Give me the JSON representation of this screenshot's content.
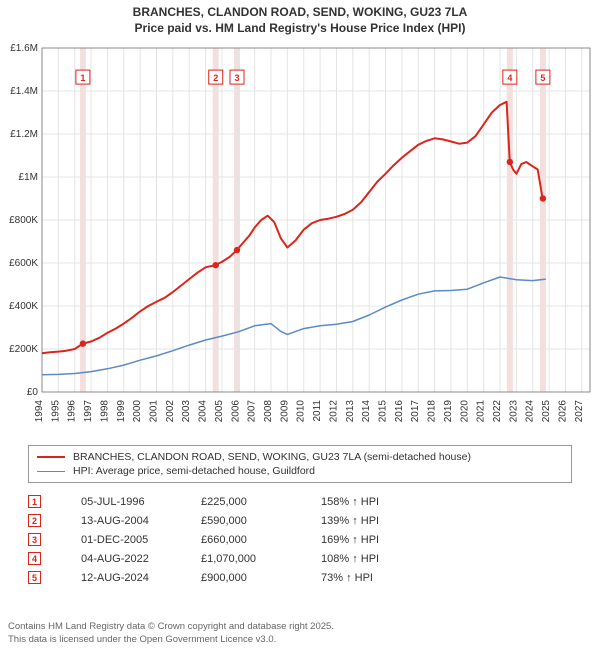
{
  "title_line1": "BRANCHES, CLANDON ROAD, SEND, WOKING, GU23 7LA",
  "title_line2": "Price paid vs. HM Land Registry's House Price Index (HPI)",
  "chart": {
    "type": "line",
    "background_color": "#ffffff",
    "plot_background": "#ffffff",
    "grid_color": "#e4e4e4",
    "axis_color": "#888888",
    "tick_fontsize": 10,
    "x_years": [
      1994,
      1995,
      1996,
      1997,
      1998,
      1999,
      2000,
      2001,
      2002,
      2003,
      2004,
      2005,
      2006,
      2007,
      2008,
      2009,
      2010,
      2011,
      2012,
      2013,
      2014,
      2015,
      2016,
      2017,
      2018,
      2019,
      2020,
      2021,
      2022,
      2023,
      2024,
      2025,
      2026,
      2027
    ],
    "xlim": [
      1994,
      2027.5
    ],
    "ylim": [
      0,
      1600000
    ],
    "ytick_step": 200000,
    "ytick_labels": [
      "£0",
      "£200K",
      "£400K",
      "£600K",
      "£800K",
      "£1M",
      "£1.2M",
      "£1.4M",
      "£1.6M"
    ],
    "series": [
      {
        "name": "property",
        "color": "#d9261c",
        "width": 2,
        "points": [
          [
            1994.0,
            180000
          ],
          [
            1994.5,
            185000
          ],
          [
            1995.0,
            188000
          ],
          [
            1995.5,
            192000
          ],
          [
            1996.0,
            200000
          ],
          [
            1996.5,
            225000
          ],
          [
            1997.0,
            235000
          ],
          [
            1997.5,
            252000
          ],
          [
            1998.0,
            275000
          ],
          [
            1998.5,
            295000
          ],
          [
            1999.0,
            318000
          ],
          [
            1999.5,
            345000
          ],
          [
            2000.0,
            375000
          ],
          [
            2000.5,
            400000
          ],
          [
            2001.0,
            420000
          ],
          [
            2001.5,
            438000
          ],
          [
            2002.0,
            465000
          ],
          [
            2002.5,
            495000
          ],
          [
            2003.0,
            525000
          ],
          [
            2003.5,
            555000
          ],
          [
            2004.0,
            580000
          ],
          [
            2004.6,
            590000
          ],
          [
            2005.0,
            605000
          ],
          [
            2005.5,
            630000
          ],
          [
            2005.9,
            660000
          ],
          [
            2006.3,
            695000
          ],
          [
            2006.7,
            730000
          ],
          [
            2007.0,
            765000
          ],
          [
            2007.4,
            800000
          ],
          [
            2007.8,
            820000
          ],
          [
            2008.2,
            790000
          ],
          [
            2008.6,
            715000
          ],
          [
            2009.0,
            672000
          ],
          [
            2009.5,
            705000
          ],
          [
            2010.0,
            755000
          ],
          [
            2010.5,
            785000
          ],
          [
            2011.0,
            800000
          ],
          [
            2011.5,
            806000
          ],
          [
            2012.0,
            815000
          ],
          [
            2012.5,
            828000
          ],
          [
            2013.0,
            848000
          ],
          [
            2013.5,
            882000
          ],
          [
            2014.0,
            930000
          ],
          [
            2014.5,
            978000
          ],
          [
            2015.0,
            1015000
          ],
          [
            2015.5,
            1055000
          ],
          [
            2016.0,
            1090000
          ],
          [
            2016.5,
            1120000
          ],
          [
            2017.0,
            1150000
          ],
          [
            2017.5,
            1168000
          ],
          [
            2018.0,
            1180000
          ],
          [
            2018.5,
            1175000
          ],
          [
            2019.0,
            1165000
          ],
          [
            2019.5,
            1155000
          ],
          [
            2020.0,
            1160000
          ],
          [
            2020.5,
            1190000
          ],
          [
            2021.0,
            1245000
          ],
          [
            2021.5,
            1300000
          ],
          [
            2022.0,
            1335000
          ],
          [
            2022.4,
            1350000
          ],
          [
            2022.6,
            1070000
          ],
          [
            2022.8,
            1035000
          ],
          [
            2023.0,
            1015000
          ],
          [
            2023.3,
            1060000
          ],
          [
            2023.6,
            1070000
          ],
          [
            2024.0,
            1050000
          ],
          [
            2024.3,
            1035000
          ],
          [
            2024.6,
            900000
          ]
        ]
      },
      {
        "name": "hpi",
        "color": "#5a8bc4",
        "width": 1.5,
        "points": [
          [
            1994.0,
            80000
          ],
          [
            1995.0,
            82000
          ],
          [
            1996.0,
            86000
          ],
          [
            1997.0,
            95000
          ],
          [
            1998.0,
            108000
          ],
          [
            1999.0,
            125000
          ],
          [
            2000.0,
            148000
          ],
          [
            2001.0,
            168000
          ],
          [
            2002.0,
            192000
          ],
          [
            2003.0,
            218000
          ],
          [
            2004.0,
            242000
          ],
          [
            2005.0,
            260000
          ],
          [
            2006.0,
            280000
          ],
          [
            2007.0,
            308000
          ],
          [
            2008.0,
            318000
          ],
          [
            2008.6,
            282000
          ],
          [
            2009.0,
            268000
          ],
          [
            2010.0,
            295000
          ],
          [
            2011.0,
            308000
          ],
          [
            2012.0,
            315000
          ],
          [
            2013.0,
            328000
          ],
          [
            2014.0,
            358000
          ],
          [
            2015.0,
            395000
          ],
          [
            2016.0,
            428000
          ],
          [
            2017.0,
            455000
          ],
          [
            2018.0,
            470000
          ],
          [
            2019.0,
            472000
          ],
          [
            2020.0,
            478000
          ],
          [
            2021.0,
            508000
          ],
          [
            2022.0,
            535000
          ],
          [
            2023.0,
            522000
          ],
          [
            2024.0,
            518000
          ],
          [
            2024.8,
            525000
          ]
        ]
      }
    ],
    "sale_markers": [
      {
        "n": 1,
        "year": 1996.5,
        "price": 225000,
        "color": "#d9261c"
      },
      {
        "n": 2,
        "year": 2004.62,
        "price": 590000,
        "color": "#d9261c"
      },
      {
        "n": 3,
        "year": 2005.92,
        "price": 660000,
        "color": "#d9261c"
      },
      {
        "n": 4,
        "year": 2022.6,
        "price": 1070000,
        "color": "#d9261c"
      },
      {
        "n": 5,
        "year": 2024.62,
        "price": 900000,
        "color": "#d9261c"
      }
    ],
    "marker_band_color": "#f3dcdc",
    "marker_label_top_y": 1460000
  },
  "legend": {
    "items": [
      {
        "color": "#d9261c",
        "width": 2,
        "label": "BRANCHES, CLANDON ROAD, SEND, WOKING, GU23 7LA (semi-detached house)"
      },
      {
        "color": "#5a8bc4",
        "width": 1.5,
        "label": "HPI: Average price, semi-detached house, Guildford"
      }
    ]
  },
  "sales": [
    {
      "n": "1",
      "date": "05-JUL-1996",
      "price": "£225,000",
      "pct": "158% ↑ HPI",
      "color": "#d9261c"
    },
    {
      "n": "2",
      "date": "13-AUG-2004",
      "price": "£590,000",
      "pct": "139% ↑ HPI",
      "color": "#d9261c"
    },
    {
      "n": "3",
      "date": "01-DEC-2005",
      "price": "£660,000",
      "pct": "169% ↑ HPI",
      "color": "#d9261c"
    },
    {
      "n": "4",
      "date": "04-AUG-2022",
      "price": "£1,070,000",
      "pct": "108% ↑ HPI",
      "color": "#d9261c"
    },
    {
      "n": "5",
      "date": "12-AUG-2024",
      "price": "£900,000",
      "pct": "73% ↑ HPI",
      "color": "#d9261c"
    }
  ],
  "footer_line1": "Contains HM Land Registry data © Crown copyright and database right 2025.",
  "footer_line2": "This data is licensed under the Open Government Licence v3.0."
}
